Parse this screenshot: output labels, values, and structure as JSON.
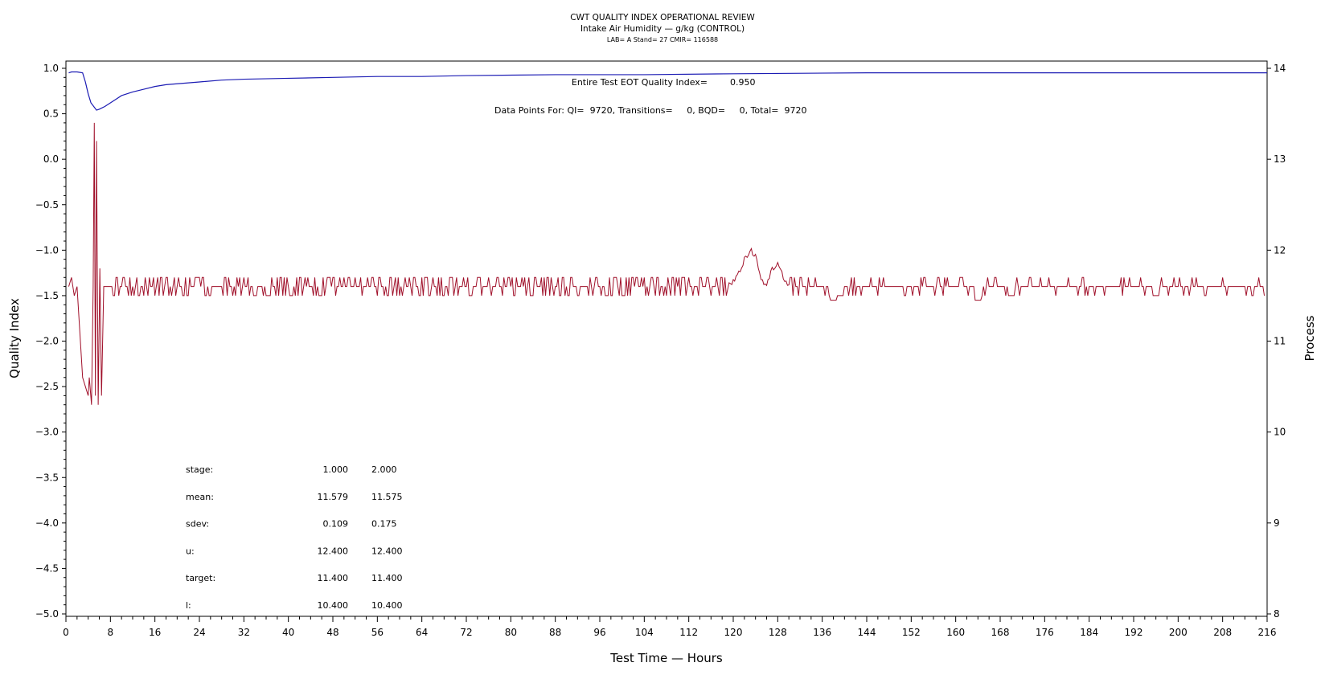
{
  "chart_data": {
    "type": "line",
    "title": "CWT QUALITY INDEX OPERATIONAL REVIEW",
    "subtitle": "Intake Air Humidity — g/kg (CONTROL)",
    "subtitle2": "LAB= A Stand= 27 CMIR= 116588",
    "xlabel": "Test Time — Hours",
    "ylabel_left": "Quality Index",
    "ylabel_right": "Process",
    "xlim": [
      0,
      216
    ],
    "ylim_left": [
      -5.0,
      1.0
    ],
    "ylim_right": [
      8,
      14
    ],
    "x_ticks": [
      "0",
      "8",
      "16",
      "24",
      "32",
      "40",
      "48",
      "56",
      "64",
      "72",
      "80",
      "88",
      "96",
      "104",
      "112",
      "120",
      "128",
      "136",
      "144",
      "152",
      "160",
      "168",
      "176",
      "184",
      "192",
      "200",
      "208",
      "216"
    ],
    "y_left_ticks": [
      "1.0",
      "0.5",
      "0.0",
      "−0.5",
      "−1.0",
      "−1.5",
      "−2.0",
      "−2.5",
      "−3.0",
      "−3.5",
      "−4.0",
      "−4.5",
      "−5.0"
    ],
    "y_right_ticks": [
      "14",
      "13",
      "12",
      "11",
      "10",
      "9",
      "8"
    ],
    "annotation_qi_label": "Entire Test EOT Quality Index=",
    "annotation_qi_value": "0.950",
    "annotation_points": "Data Points For: QI=  9720, Transitions=     0, BQD=     0, Total=  9720",
    "stats_table": {
      "rows": [
        {
          "label": "stage:",
          "v1": "1.000",
          "v2": "2.000"
        },
        {
          "label": "mean:",
          "v1": "11.579",
          "v2": "11.575"
        },
        {
          "label": "sdev:",
          "v1": "0.109",
          "v2": "0.175"
        },
        {
          "label": "u:",
          "v1": "12.400",
          "v2": "12.400"
        },
        {
          "label": "target:",
          "v1": "11.400",
          "v2": "11.400"
        },
        {
          "label": "l:",
          "v1": "10.400",
          "v2": "10.400"
        }
      ]
    },
    "series": [
      {
        "axis": "left",
        "color": "#1c1cb4",
        "x": [
          0.5,
          1,
          2,
          3,
          3.5,
          4,
          4.5,
          5,
          5.5,
          6,
          7,
          8,
          9,
          10,
          12,
          14,
          16,
          18,
          20,
          24,
          28,
          32,
          40,
          48,
          56,
          64,
          72,
          88,
          104,
          120,
          144,
          176,
          216
        ],
        "y": [
          0.95,
          0.96,
          0.96,
          0.95,
          0.85,
          0.72,
          0.62,
          0.58,
          0.54,
          0.55,
          0.58,
          0.62,
          0.66,
          0.7,
          0.74,
          0.77,
          0.8,
          0.82,
          0.83,
          0.85,
          0.87,
          0.88,
          0.89,
          0.9,
          0.91,
          0.91,
          0.92,
          0.93,
          0.93,
          0.94,
          0.95,
          0.95,
          0.95
        ]
      },
      {
        "axis": "right",
        "color": "#a0102a",
        "baseline": 11.6,
        "spike_points": [
          [
            0.5,
            11.6
          ],
          [
            1,
            11.7
          ],
          [
            1.5,
            11.5
          ],
          [
            2,
            11.6
          ],
          [
            2.5,
            11.1
          ],
          [
            3,
            10.6
          ],
          [
            3.5,
            10.5
          ],
          [
            4,
            10.4
          ],
          [
            4.2,
            10.6
          ],
          [
            4.6,
            10.3
          ],
          [
            4.9,
            11.6
          ],
          [
            5.1,
            13.4
          ],
          [
            5.3,
            10.4
          ],
          [
            5.5,
            13.2
          ],
          [
            5.8,
            10.3
          ],
          [
            6.1,
            11.8
          ],
          [
            6.4,
            10.4
          ],
          [
            6.8,
            11.6
          ],
          [
            7.5,
            11.6
          ]
        ],
        "bumps": [
          {
            "x": [
              119,
              120,
              121,
              122,
              123,
              124,
              125,
              126,
              127,
              128,
              129,
              130
            ],
            "y": [
              11.6,
              11.65,
              11.75,
              11.9,
              12.0,
              11.95,
              11.7,
              11.6,
              11.8,
              11.85,
              11.7,
              11.6
            ]
          }
        ],
        "dip_at": [
          [
            138,
            11.45
          ],
          [
            164,
            11.45
          ],
          [
            170,
            11.5
          ],
          [
            196,
            11.5
          ]
        ]
      }
    ]
  }
}
